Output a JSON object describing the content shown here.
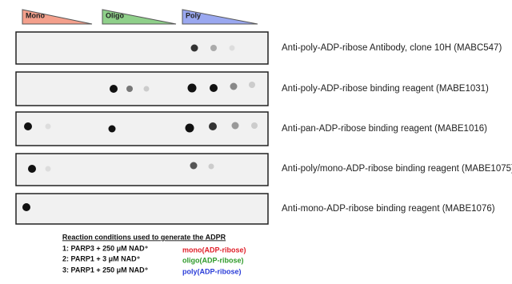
{
  "header": {
    "labels": [
      "Mono",
      "Oligo",
      "Poly"
    ]
  },
  "rows": [
    {
      "label": "Anti-poly-ADP-ribose Antibody, clone 10H (MABC547)"
    },
    {
      "label": "Anti-poly-ADP-ribose binding reagent (MABE1031)"
    },
    {
      "label": "Anti-pan-ADP-ribose binding reagent (MABE1016)"
    },
    {
      "label": "Anti-poly/mono-ADP-ribose binding reagent (MABE1075)"
    },
    {
      "label": "Anti-mono-ADP-ribose binding reagent (MABE1076)"
    }
  ],
  "legend": {
    "title": "Reaction conditions used to generate the ADPR",
    "conditions": [
      {
        "condition": "1: PARP3 + 250 μM NAD⁺",
        "product": "mono(ADP-ribose)"
      },
      {
        "condition": "2: PARP1 + 3 μM NAD⁺",
        "product": "oligo(ADP-ribose)"
      },
      {
        "condition": "3: PARP1 + 250 μM NAD⁺",
        "product": "poly(ADP-ribose)"
      }
    ]
  }
}
